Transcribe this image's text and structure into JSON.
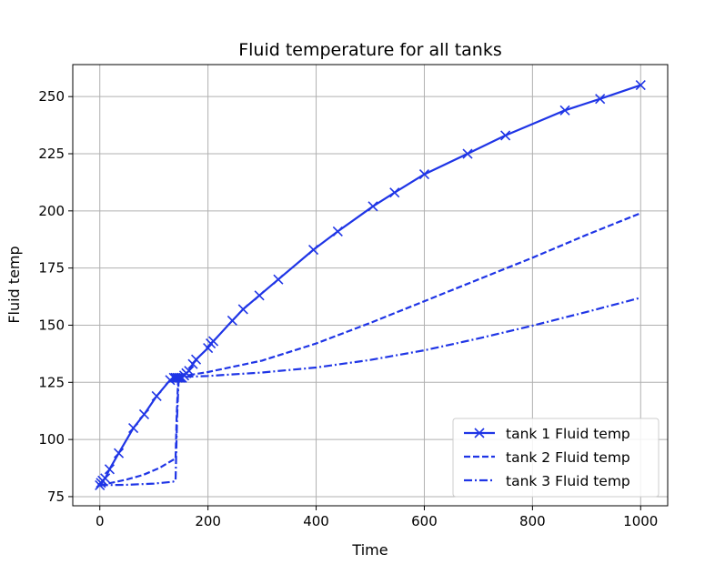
{
  "chart_data": {
    "type": "line",
    "title": "Fluid temperature for all tanks",
    "xlabel": "Time",
    "ylabel": "Fluid temp",
    "xlim": [
      -50,
      1050
    ],
    "ylim": [
      71,
      264
    ],
    "xticks": [
      0,
      200,
      400,
      600,
      800,
      1000
    ],
    "yticks": [
      75,
      100,
      125,
      150,
      175,
      200,
      225,
      250
    ],
    "grid": true,
    "legend_position": "lower-right",
    "line_color": "#1f35e6",
    "series": [
      {
        "name": "tank 1 Fluid temp",
        "style": "solid",
        "marker": "x",
        "x": [
          0,
          2,
          5,
          10,
          18,
          35,
          62,
          82,
          105,
          130,
          137,
          140,
          143,
          146,
          149,
          152,
          156,
          160,
          165,
          172,
          178,
          200,
          205,
          210,
          245,
          265,
          295,
          330,
          395,
          440,
          505,
          545,
          600,
          680,
          750,
          860,
          925,
          1000
        ],
        "y": [
          80,
          81,
          82,
          83,
          87,
          94,
          105,
          111,
          119,
          126,
          127,
          127,
          127,
          127,
          127,
          127,
          128,
          129,
          130,
          133,
          135,
          140,
          142,
          143,
          152,
          157,
          163,
          170,
          183,
          191,
          202,
          208,
          216,
          225,
          233,
          244,
          249,
          255
        ]
      },
      {
        "name": "tank 2 Fluid temp",
        "style": "dashed",
        "x": [
          0,
          20,
          50,
          80,
          110,
          135,
          140,
          142,
          145,
          150,
          160,
          200,
          300,
          400,
          500,
          600,
          700,
          800,
          900,
          1000
        ],
        "y": [
          80,
          81,
          82.5,
          84.5,
          87.5,
          91,
          91.5,
          110,
          127,
          127.5,
          128,
          129.5,
          134.5,
          142,
          151,
          160.5,
          170,
          179.5,
          189.5,
          199
        ]
      },
      {
        "name": "tank 3 Fluid temp",
        "style": "dashdot",
        "x": [
          0,
          50,
          100,
          135,
          140,
          143,
          146,
          150,
          200,
          300,
          400,
          500,
          600,
          700,
          800,
          900,
          1000
        ],
        "y": [
          80,
          80.2,
          80.7,
          81.5,
          82,
          110,
          127,
          127.3,
          127.8,
          129.3,
          131.5,
          134.8,
          139,
          144.2,
          149.8,
          155.8,
          162
        ]
      }
    ]
  }
}
